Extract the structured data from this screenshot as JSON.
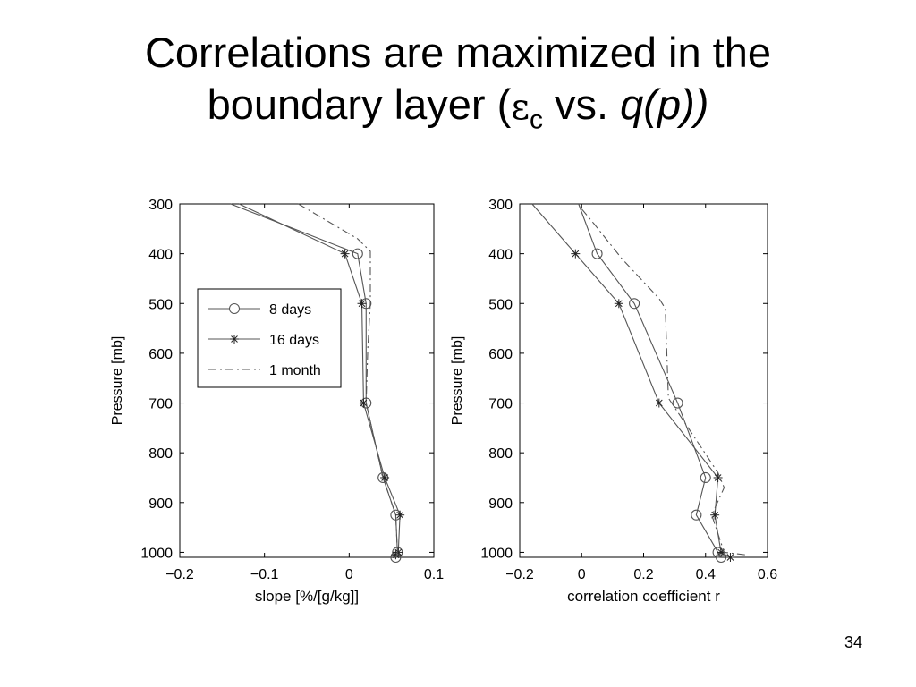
{
  "slide": {
    "title_line1": "Correlations are maximized in the",
    "title_line2_pre": "boundary layer (",
    "title_symbol": "ε",
    "title_symbol_sub": "c",
    "title_vs": " vs. ",
    "title_var": "q(p))",
    "page_number": "34"
  },
  "chart_data": [
    {
      "type": "line",
      "xlabel": "slope [%/[g/kg]]",
      "ylabel": "Pressure [mb]",
      "xlim": [
        -0.2,
        0.1
      ],
      "ylim": [
        300,
        1010
      ],
      "y_inverted": true,
      "xticks": [
        -0.2,
        -0.1,
        0,
        0.1
      ],
      "xtick_labels": [
        "−0.2",
        "−0.1",
        "0",
        "0.1"
      ],
      "yticks": [
        300,
        400,
        500,
        600,
        700,
        800,
        900,
        1000
      ],
      "ytick_labels": [
        "300",
        "400",
        "500",
        "600",
        "700",
        "800",
        "900",
        "1000"
      ],
      "legend": {
        "placement": "upper-left"
      },
      "series": [
        {
          "name": "8 days",
          "style": "solid",
          "marker": "circle",
          "points": [
            [
              -0.14,
              300
            ],
            [
              0.01,
              400
            ],
            [
              0.02,
              500
            ],
            [
              0.02,
              700
            ],
            [
              0.04,
              850
            ],
            [
              0.055,
              925
            ],
            [
              0.057,
              1000
            ],
            [
              0.055,
              1010
            ]
          ]
        },
        {
          "name": "16 days",
          "style": "solid",
          "marker": "star",
          "points": [
            [
              -0.13,
              300
            ],
            [
              -0.005,
              400
            ],
            [
              0.015,
              500
            ],
            [
              0.017,
              700
            ],
            [
              0.042,
              850
            ],
            [
              0.06,
              925
            ],
            [
              0.058,
              1000
            ],
            [
              0.055,
              1005
            ]
          ]
        },
        {
          "name": "1 month",
          "style": "dashdot",
          "marker": "none",
          "points": [
            [
              -0.06,
              300
            ],
            [
              0.01,
              370
            ],
            [
              0.025,
              395
            ],
            [
              0.025,
              500
            ],
            [
              0.022,
              590
            ],
            [
              0.02,
              700
            ],
            [
              0.04,
              850
            ],
            [
              0.055,
              925
            ],
            [
              0.057,
              1000
            ],
            [
              0.055,
              1010
            ]
          ]
        }
      ]
    },
    {
      "type": "line",
      "xlabel": "correlation coefficient r",
      "ylabel": "Pressure [mb]",
      "xlim": [
        -0.2,
        0.6
      ],
      "ylim": [
        300,
        1010
      ],
      "y_inverted": true,
      "xticks": [
        -0.2,
        0,
        0.2,
        0.4,
        0.6
      ],
      "xtick_labels": [
        "−0.2",
        "0",
        "0.2",
        "0.4",
        "0.6"
      ],
      "yticks": [
        300,
        400,
        500,
        600,
        700,
        800,
        900,
        1000
      ],
      "ytick_labels": [
        "300",
        "400",
        "500",
        "600",
        "700",
        "800",
        "900",
        "1000"
      ],
      "series": [
        {
          "name": "8 days",
          "style": "solid",
          "marker": "circle",
          "points": [
            [
              -0.01,
              300
            ],
            [
              0.05,
              400
            ],
            [
              0.17,
              500
            ],
            [
              0.31,
              700
            ],
            [
              0.4,
              850
            ],
            [
              0.37,
              925
            ],
            [
              0.44,
              1000
            ],
            [
              0.45,
              1010
            ]
          ]
        },
        {
          "name": "16 days",
          "style": "solid",
          "marker": "star",
          "points": [
            [
              -0.16,
              300
            ],
            [
              -0.02,
              400
            ],
            [
              0.12,
              500
            ],
            [
              0.25,
              700
            ],
            [
              0.44,
              850
            ],
            [
              0.43,
              925
            ],
            [
              0.45,
              1000
            ],
            [
              0.48,
              1010
            ]
          ]
        },
        {
          "name": "1 month",
          "style": "dashdot",
          "marker": "none",
          "points": [
            [
              0.0,
              310
            ],
            [
              0.04,
              340
            ],
            [
              0.13,
              410
            ],
            [
              0.25,
              490
            ],
            [
              0.27,
              510
            ],
            [
              0.28,
              690
            ],
            [
              0.44,
              840
            ],
            [
              0.46,
              870
            ],
            [
              0.42,
              925
            ],
            [
              0.46,
              1000
            ],
            [
              0.53,
              1005
            ]
          ]
        }
      ]
    }
  ]
}
